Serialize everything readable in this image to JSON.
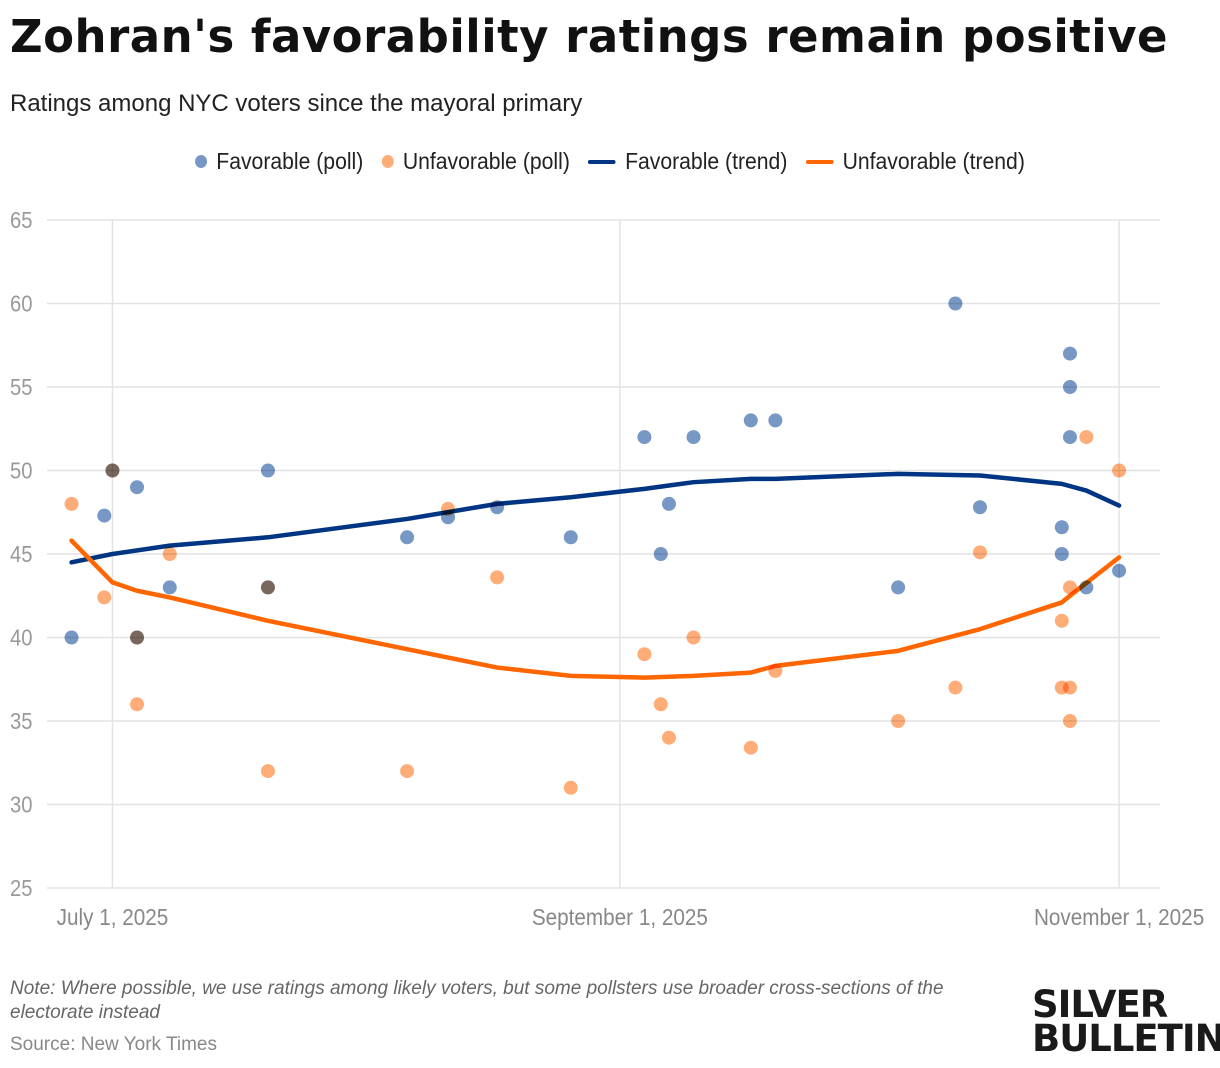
{
  "title": "Zohran's favorability ratings remain positive",
  "subtitle": "Ratings among NYC voters since the mayoral primary",
  "legend": [
    {
      "label": "Favorable (poll)",
      "kind": "dot",
      "color": "#7797c4"
    },
    {
      "label": "Unfavorable (poll)",
      "kind": "dot",
      "color": "#ffad78"
    },
    {
      "label": "Favorable (trend)",
      "kind": "line",
      "color": "#003583"
    },
    {
      "label": "Unfavorable (trend)",
      "kind": "line",
      "color": "#ff6600"
    }
  ],
  "note": "Note: Where possible, we use ratings among likely voters, but some pollsters use broader cross-sections of the electorate instead",
  "source": "Source: New York Times",
  "logo": "SILVER BULLETIN",
  "chart_data": {
    "type": "scatter",
    "title": "Zohran's favorability ratings remain positive",
    "ylim": [
      25,
      65
    ],
    "yticks": [
      "25",
      "30",
      "35",
      "40",
      "45",
      "50",
      "55",
      "60",
      "65"
    ],
    "xlim": [
      "2025-06-23",
      "2025-11-06"
    ],
    "xticks": [
      {
        "date": "2025-07-01",
        "label": "July 1, 2025"
      },
      {
        "date": "2025-09-01",
        "label": "September 1, 2025"
      },
      {
        "date": "2025-11-01",
        "label": "November 1, 2025"
      }
    ],
    "grid": true,
    "legend_position": "top",
    "series": [
      {
        "name": "Favorable (poll)",
        "kind": "points",
        "color": "#7797c4",
        "points": [
          [
            "2025-06-26",
            40
          ],
          [
            "2025-06-30",
            47.3
          ],
          [
            "2025-07-01",
            50
          ],
          [
            "2025-07-04",
            49
          ],
          [
            "2025-07-04",
            40
          ],
          [
            "2025-07-08",
            43
          ],
          [
            "2025-07-20",
            50
          ],
          [
            "2025-07-20",
            43
          ],
          [
            "2025-08-06",
            46
          ],
          [
            "2025-08-11",
            47.2
          ],
          [
            "2025-08-17",
            47.8
          ],
          [
            "2025-08-26",
            46
          ],
          [
            "2025-09-04",
            52
          ],
          [
            "2025-09-06",
            45
          ],
          [
            "2025-09-07",
            48
          ],
          [
            "2025-09-10",
            52
          ],
          [
            "2025-09-17",
            53
          ],
          [
            "2025-09-20",
            53
          ],
          [
            "2025-10-05",
            43
          ],
          [
            "2025-10-12",
            60
          ],
          [
            "2025-10-15",
            47.8
          ],
          [
            "2025-10-25",
            46.6
          ],
          [
            "2025-10-25",
            45
          ],
          [
            "2025-10-26",
            57
          ],
          [
            "2025-10-26",
            55
          ],
          [
            "2025-10-26",
            52
          ],
          [
            "2025-10-28",
            43
          ],
          [
            "2025-11-01",
            44
          ]
        ]
      },
      {
        "name": "Unfavorable (poll)",
        "kind": "points",
        "color": "#ffad78",
        "points": [
          [
            "2025-06-26",
            48
          ],
          [
            "2025-06-30",
            42.4
          ],
          [
            "2025-07-01",
            50
          ],
          [
            "2025-07-04",
            40
          ],
          [
            "2025-07-04",
            36
          ],
          [
            "2025-07-08",
            45
          ],
          [
            "2025-07-20",
            43
          ],
          [
            "2025-07-20",
            32
          ],
          [
            "2025-08-06",
            32
          ],
          [
            "2025-08-11",
            47.7
          ],
          [
            "2025-08-17",
            43.6
          ],
          [
            "2025-08-26",
            31
          ],
          [
            "2025-09-04",
            39
          ],
          [
            "2025-09-06",
            36
          ],
          [
            "2025-09-07",
            34
          ],
          [
            "2025-09-10",
            40
          ],
          [
            "2025-09-17",
            33.4
          ],
          [
            "2025-09-20",
            38
          ],
          [
            "2025-10-05",
            35
          ],
          [
            "2025-10-12",
            37
          ],
          [
            "2025-10-15",
            45.1
          ],
          [
            "2025-10-25",
            41
          ],
          [
            "2025-10-25",
            37
          ],
          [
            "2025-10-26",
            37
          ],
          [
            "2025-10-26",
            35
          ],
          [
            "2025-10-26",
            43
          ],
          [
            "2025-10-28",
            52
          ],
          [
            "2025-11-01",
            50
          ]
        ]
      },
      {
        "name": "Favorable (trend)",
        "kind": "line",
        "color": "#003583",
        "points": [
          [
            "2025-06-26",
            44.5
          ],
          [
            "2025-07-01",
            45
          ],
          [
            "2025-07-08",
            45.5
          ],
          [
            "2025-07-20",
            46
          ],
          [
            "2025-08-06",
            47.1
          ],
          [
            "2025-08-17",
            48
          ],
          [
            "2025-08-26",
            48.4
          ],
          [
            "2025-09-04",
            48.9
          ],
          [
            "2025-09-07",
            49.1
          ],
          [
            "2025-09-10",
            49.3
          ],
          [
            "2025-09-17",
            49.5
          ],
          [
            "2025-09-20",
            49.5
          ],
          [
            "2025-10-05",
            49.8
          ],
          [
            "2025-10-15",
            49.7
          ],
          [
            "2025-10-25",
            49.2
          ],
          [
            "2025-10-28",
            48.8
          ],
          [
            "2025-11-01",
            47.9
          ]
        ]
      },
      {
        "name": "Unfavorable (trend)",
        "kind": "line",
        "color": "#ff6600",
        "points": [
          [
            "2025-06-26",
            45.8
          ],
          [
            "2025-07-01",
            43.3
          ],
          [
            "2025-07-04",
            42.8
          ],
          [
            "2025-07-08",
            42.4
          ],
          [
            "2025-07-20",
            41
          ],
          [
            "2025-08-06",
            39.3
          ],
          [
            "2025-08-17",
            38.2
          ],
          [
            "2025-08-26",
            37.7
          ],
          [
            "2025-09-04",
            37.6
          ],
          [
            "2025-09-10",
            37.7
          ],
          [
            "2025-09-17",
            37.9
          ],
          [
            "2025-09-20",
            38.3
          ],
          [
            "2025-10-05",
            39.2
          ],
          [
            "2025-10-15",
            40.5
          ],
          [
            "2025-10-25",
            42.1
          ],
          [
            "2025-10-26",
            42.5
          ],
          [
            "2025-11-01",
            44.8
          ]
        ]
      }
    ]
  }
}
